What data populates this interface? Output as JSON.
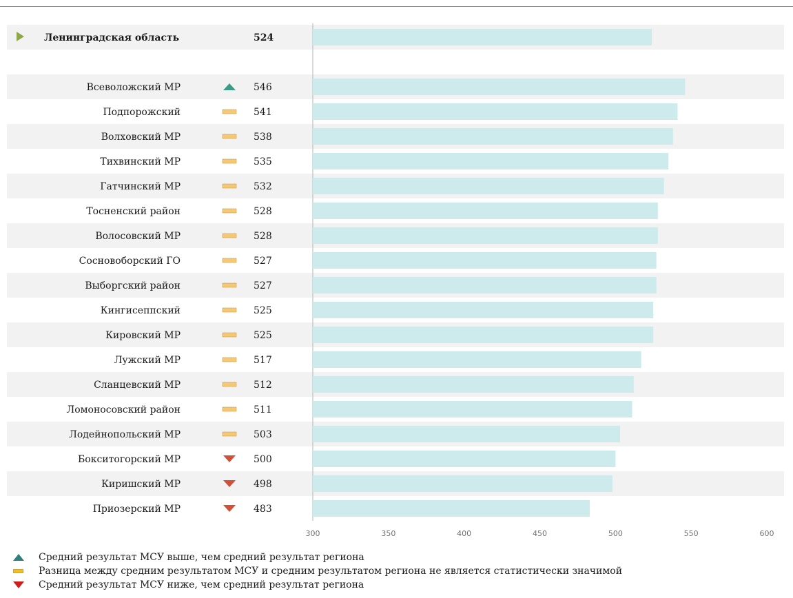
{
  "chart_data": {
    "type": "bar",
    "orientation": "horizontal",
    "title": "",
    "xlabel": "",
    "ylabel": "",
    "xlim": [
      300,
      600
    ],
    "xticks": [
      300,
      350,
      400,
      450,
      500,
      550,
      600
    ],
    "grid": false,
    "summary": {
      "name": "Ленинградская область",
      "value": 524
    },
    "categories": [
      "Всеволожский  МР",
      "Подпорожский",
      "Волховский МР",
      "Тихвинский МР",
      "Гатчинский МР",
      "Тосненский район",
      "Волосовский МР",
      "Сосновоборский ГО",
      "Выборгский район",
      "Кингисеппский",
      "Кировский МР",
      "Лужский МР",
      "Сланцевский МР",
      "Ломоносовский район",
      "Лодейнопольский МР",
      "Бокситогорский МР",
      "Киришский МР",
      "Приозерский МР"
    ],
    "values": [
      546,
      541,
      538,
      535,
      532,
      528,
      528,
      527,
      527,
      525,
      525,
      517,
      512,
      511,
      503,
      500,
      498,
      483
    ],
    "significance": [
      "up",
      "eq",
      "eq",
      "eq",
      "eq",
      "eq",
      "eq",
      "eq",
      "eq",
      "eq",
      "eq",
      "eq",
      "eq",
      "eq",
      "eq",
      "down",
      "down",
      "down"
    ]
  },
  "colors": {
    "bar": "#cdeaec",
    "row_band": "#f2f2f2",
    "axis": "#b5b5b5",
    "summary_marker": "#8ea848",
    "up": "#2f7f7f",
    "eq": "#f0c020",
    "eq_border": "#c8a040",
    "eq_row": "#f5c878",
    "down": "#cc2020",
    "down_row": "#d05038"
  },
  "legend": [
    {
      "kind": "up",
      "icon": "triangle-up-icon",
      "text": "Средний результат МСУ выше, чем средний результат региона"
    },
    {
      "kind": "eq",
      "icon": "dash-icon",
      "text": "Разница между средним результатом МСУ и средним результатом региона не является статистически значимой"
    },
    {
      "kind": "down",
      "icon": "triangle-down-icon",
      "text": "Средний результат МСУ ниже, чем средний результат региона"
    }
  ]
}
